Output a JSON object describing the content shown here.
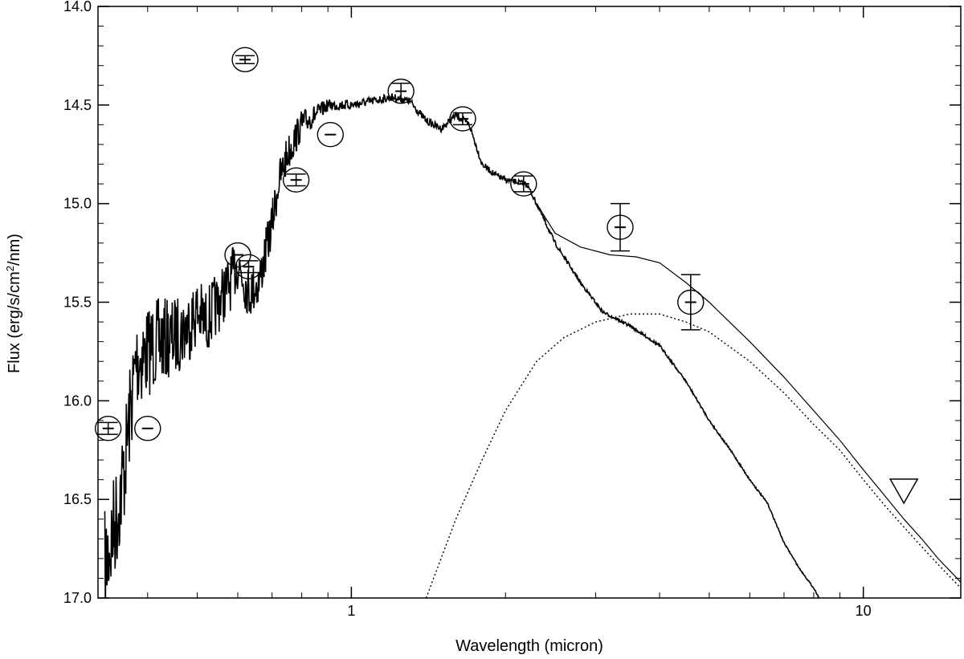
{
  "chart_data": {
    "type": "line",
    "xlabel": "Wavelength (micron)",
    "ylabel": "Flux (erg/s/cm²/nm)",
    "ylabel_parts": {
      "pre": "Flux (erg/s/cm",
      "sup": "2",
      "post": "/nm)"
    },
    "x_scale": "log",
    "xlim": [
      0.32,
      15.5
    ],
    "ylim": [
      17.0,
      14.0
    ],
    "y_inverted": true,
    "x_ticks": [
      {
        "value": 1,
        "label": "1"
      },
      {
        "value": 10,
        "label": "10"
      }
    ],
    "y_ticks": [
      {
        "value": 14.0,
        "label": "14.0"
      },
      {
        "value": 14.5,
        "label": "14.5"
      },
      {
        "value": 15.0,
        "label": "15.0"
      },
      {
        "value": 15.5,
        "label": "15.5"
      },
      {
        "value": 16.0,
        "label": "16.0"
      },
      {
        "value": 16.5,
        "label": "16.5"
      },
      {
        "value": 17.0,
        "label": "17.0"
      }
    ],
    "grid": false,
    "legend": "none",
    "series": [
      {
        "kind": "stellar_spectrum",
        "style": "solid-noisy",
        "points": [
          [
            0.33,
            16.85
          ],
          [
            0.34,
            16.7
          ],
          [
            0.35,
            16.55
          ],
          [
            0.36,
            16.35
          ],
          [
            0.37,
            16.05
          ],
          [
            0.38,
            15.8
          ],
          [
            0.4,
            15.75
          ],
          [
            0.42,
            15.7
          ],
          [
            0.45,
            15.68
          ],
          [
            0.48,
            15.62
          ],
          [
            0.5,
            15.55
          ],
          [
            0.52,
            15.6
          ],
          [
            0.55,
            15.5
          ],
          [
            0.58,
            15.4
          ],
          [
            0.6,
            15.3
          ],
          [
            0.63,
            15.45
          ],
          [
            0.66,
            15.4
          ],
          [
            0.7,
            15.1
          ],
          [
            0.72,
            14.9
          ],
          [
            0.75,
            14.75
          ],
          [
            0.8,
            14.6
          ],
          [
            0.85,
            14.55
          ],
          [
            0.9,
            14.5
          ],
          [
            1.0,
            14.5
          ],
          [
            1.1,
            14.48
          ],
          [
            1.2,
            14.46
          ],
          [
            1.3,
            14.48
          ],
          [
            1.4,
            14.58
          ],
          [
            1.5,
            14.62
          ],
          [
            1.6,
            14.55
          ],
          [
            1.7,
            14.6
          ],
          [
            1.8,
            14.8
          ],
          [
            1.9,
            14.85
          ],
          [
            2.0,
            14.88
          ],
          [
            2.2,
            14.9
          ],
          [
            2.3,
            15.0
          ],
          [
            2.5,
            15.2
          ],
          [
            2.8,
            15.4
          ],
          [
            3.1,
            15.55
          ],
          [
            3.5,
            15.62
          ],
          [
            4.0,
            15.72
          ],
          [
            4.5,
            15.9
          ],
          [
            5.0,
            16.1
          ],
          [
            5.5,
            16.25
          ],
          [
            6.0,
            16.4
          ],
          [
            6.5,
            16.52
          ],
          [
            7.0,
            16.72
          ],
          [
            7.5,
            16.85
          ],
          [
            8.0,
            16.95
          ],
          [
            8.2,
            17.0
          ]
        ],
        "noise": [
          [
            0.32,
            0.3
          ],
          [
            0.45,
            0.2
          ],
          [
            0.6,
            0.14
          ],
          [
            0.75,
            0.1
          ],
          [
            0.9,
            0.03
          ],
          [
            1.2,
            0.02
          ],
          [
            2.0,
            0.015
          ],
          [
            3.0,
            0.008
          ],
          [
            15,
            0.0
          ]
        ]
      },
      {
        "kind": "total_model",
        "style": "solid",
        "points": [
          [
            2.3,
            15.0
          ],
          [
            2.5,
            15.15
          ],
          [
            2.8,
            15.22
          ],
          [
            3.2,
            15.26
          ],
          [
            3.6,
            15.27
          ],
          [
            4.0,
            15.3
          ],
          [
            4.5,
            15.4
          ],
          [
            5.0,
            15.5
          ],
          [
            6.0,
            15.7
          ],
          [
            7.0,
            15.88
          ],
          [
            8.0,
            16.05
          ],
          [
            9.0,
            16.2
          ],
          [
            10.0,
            16.35
          ],
          [
            11.0,
            16.48
          ],
          [
            12.0,
            16.6
          ],
          [
            13.0,
            16.7
          ],
          [
            14.0,
            16.8
          ],
          [
            15.5,
            16.92
          ]
        ]
      },
      {
        "kind": "dust_blackbody",
        "style": "dotted",
        "points": [
          [
            1.4,
            17.0
          ],
          [
            1.6,
            16.6
          ],
          [
            1.8,
            16.3
          ],
          [
            2.0,
            16.05
          ],
          [
            2.3,
            15.8
          ],
          [
            2.6,
            15.68
          ],
          [
            3.0,
            15.6
          ],
          [
            3.5,
            15.56
          ],
          [
            4.0,
            15.56
          ],
          [
            4.5,
            15.6
          ],
          [
            5.0,
            15.65
          ],
          [
            6.0,
            15.8
          ],
          [
            7.0,
            15.96
          ],
          [
            8.0,
            16.12
          ],
          [
            9.0,
            16.25
          ],
          [
            10.0,
            16.4
          ],
          [
            11.0,
            16.53
          ],
          [
            12.0,
            16.64
          ],
          [
            13.0,
            16.74
          ],
          [
            14.0,
            16.83
          ],
          [
            15.5,
            16.95
          ]
        ]
      }
    ],
    "photometry": [
      {
        "x": 0.335,
        "y": 16.14,
        "err": 0.03
      },
      {
        "x": 0.4,
        "y": 16.14,
        "err": 0.0
      },
      {
        "x": 0.62,
        "y": 14.27,
        "err": 0.02
      },
      {
        "x": 0.6,
        "y": 15.26,
        "err": 0.0
      },
      {
        "x": 0.63,
        "y": 15.32,
        "err": 0.03
      },
      {
        "x": 0.78,
        "y": 14.88,
        "err": 0.03
      },
      {
        "x": 0.91,
        "y": 14.65,
        "err": 0.0
      },
      {
        "x": 1.25,
        "y": 14.43,
        "err": 0.04
      },
      {
        "x": 1.65,
        "y": 14.57,
        "err": 0.03
      },
      {
        "x": 2.17,
        "y": 14.9,
        "err": 0.04
      },
      {
        "x": 3.35,
        "y": 15.12,
        "err": 0.12
      },
      {
        "x": 4.6,
        "y": 15.5,
        "err": 0.14
      }
    ],
    "upper_limits": [
      {
        "x": 12.0,
        "y": 16.45
      }
    ]
  }
}
